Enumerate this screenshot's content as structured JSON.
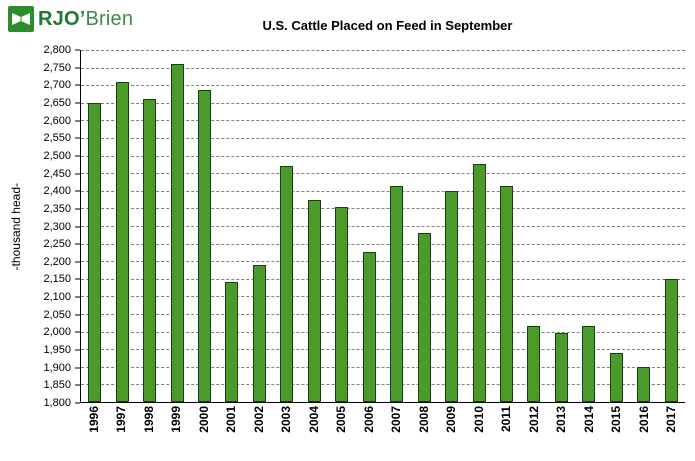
{
  "logo": {
    "bold": "RJO",
    "apostrophe": "’",
    "rest": "Brien"
  },
  "chart_data": {
    "type": "bar",
    "title": "U.S. Cattle Placed on Feed in September",
    "xlabel": "",
    "ylabel": "-thousand head-",
    "ylim": [
      1800,
      2800
    ],
    "ytick_step": 50,
    "grid": "horizontal-dashed",
    "legend": "none",
    "xticks_rotated": true,
    "bar_color": "#4c9a2c",
    "bar_border_color": "#16420e",
    "categories": [
      "1996",
      "1997",
      "1998",
      "1999",
      "2000",
      "2001",
      "2002",
      "2003",
      "2004",
      "2005",
      "2006",
      "2007",
      "2008",
      "2009",
      "2010",
      "2011",
      "2012",
      "2013",
      "2014",
      "2015",
      "2016",
      "2017"
    ],
    "values": [
      2650,
      2710,
      2660,
      2760,
      2685,
      2140,
      2190,
      2470,
      2375,
      2355,
      2225,
      2415,
      2280,
      2400,
      2475,
      2415,
      2015,
      1995,
      2015,
      1940,
      1900,
      2150
    ]
  }
}
